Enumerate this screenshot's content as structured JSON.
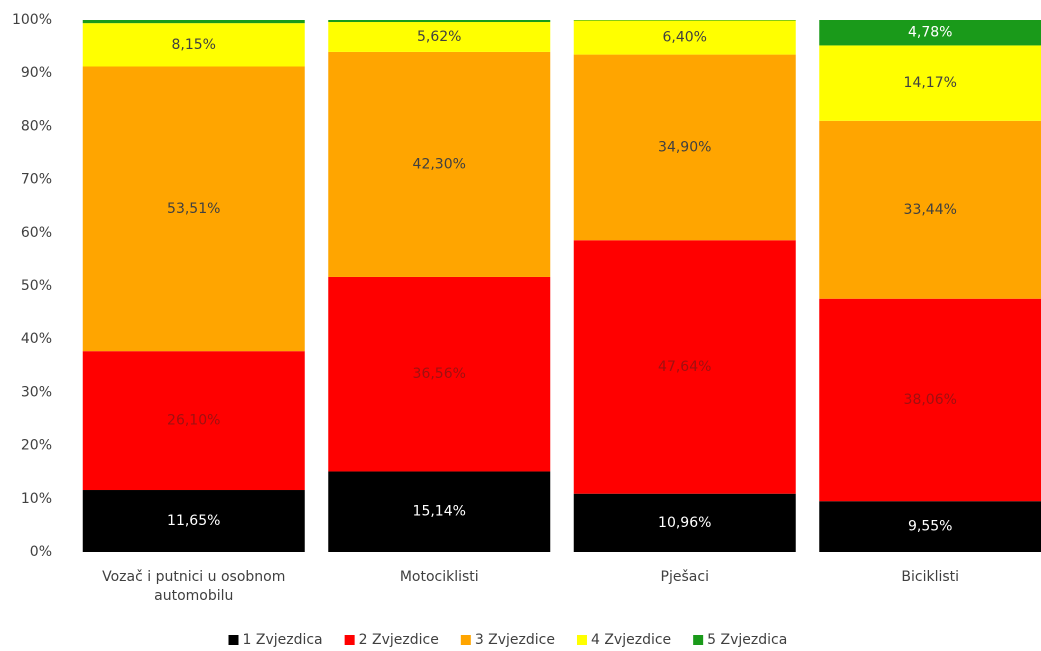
{
  "chart_data": {
    "type": "stacked_bar",
    "categories": [
      "Vozač i putnici u osobnom automobilu",
      "Motociklisti",
      "Pješaci",
      "Biciklisti"
    ],
    "series": [
      {
        "name": "1 Zvjezdica",
        "color": "#000000",
        "values": [
          11.65,
          15.14,
          10.96,
          9.55
        ],
        "value_labels": [
          "11,65%",
          "15,14%",
          "10,96%",
          "9,55%"
        ]
      },
      {
        "name": "2 Zvjezdice",
        "color": "#ff0000",
        "values": [
          26.1,
          36.56,
          47.64,
          38.06
        ],
        "value_labels": [
          "26,10%",
          "36,56%",
          "47,64%",
          "38,06%"
        ]
      },
      {
        "name": "3 Zvjezdice",
        "color": "#ffa500",
        "values": [
          53.51,
          42.3,
          34.9,
          33.44
        ],
        "value_labels": [
          "53,51%",
          "42,30%",
          "34,90%",
          "33,44%"
        ]
      },
      {
        "name": "4 Zvjezdice",
        "color": "#ffff00",
        "values": [
          8.15,
          5.62,
          6.4,
          14.17
        ],
        "value_labels": [
          "8,15%",
          "5,62%",
          "6,40%",
          "14,17%"
        ]
      },
      {
        "name": "5 Zvjezdica",
        "color": "#1a9a1a",
        "values": [
          0.59,
          0.38,
          0.1,
          4.78
        ],
        "value_labels": [
          null,
          null,
          null,
          "4,78%"
        ]
      }
    ],
    "ylim": [
      0,
      100
    ],
    "yticks": [
      {
        "value": 0,
        "label": "0%"
      },
      {
        "value": 10,
        "label": "10%"
      },
      {
        "value": 20,
        "label": "20%"
      },
      {
        "value": 30,
        "label": "30%"
      },
      {
        "value": 40,
        "label": "40%"
      },
      {
        "value": 50,
        "label": "50%"
      },
      {
        "value": 60,
        "label": "60%"
      },
      {
        "value": 70,
        "label": "70%"
      },
      {
        "value": 80,
        "label": "80%"
      },
      {
        "value": 90,
        "label": "90%"
      },
      {
        "value": 100,
        "label": "100%"
      }
    ],
    "legend": "bottom"
  }
}
